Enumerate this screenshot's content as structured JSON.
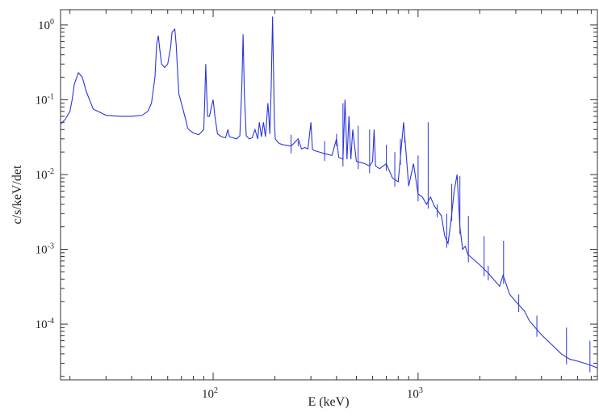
{
  "chart_data": {
    "type": "line",
    "xlabel": "E (keV)",
    "ylabel": "c/s/keV/det",
    "xscale": "log",
    "yscale": "log",
    "xlim": [
      18,
      7500
    ],
    "ylim": [
      1.8e-05,
      1.6
    ],
    "grid": false,
    "legend": "none",
    "line_color": "#2a35d8",
    "x_ticks": [
      {
        "value": 100,
        "base": "10",
        "exp": "2"
      },
      {
        "value": 1000,
        "base": "10",
        "exp": "3"
      }
    ],
    "y_ticks": [
      {
        "value": 1,
        "base": "10",
        "exp": "0"
      },
      {
        "value": 0.1,
        "base": "10",
        "exp": "-1"
      },
      {
        "value": 0.01,
        "base": "10",
        "exp": "-2"
      },
      {
        "value": 0.001,
        "base": "10",
        "exp": "-3"
      },
      {
        "value": 0.0001,
        "base": "10",
        "exp": "-4"
      }
    ],
    "series": [
      {
        "x": [
          18,
          19,
          20,
          20.5,
          21,
          22,
          23,
          24,
          26,
          30,
          35,
          40,
          45,
          48,
          50,
          52,
          53,
          54,
          55,
          56,
          58,
          60,
          62,
          63,
          65,
          66,
          67,
          68,
          70,
          74,
          75,
          76,
          80,
          85,
          90,
          91,
          92,
          93,
          94,
          96,
          98,
          100,
          102,
          105,
          110,
          115,
          118,
          120,
          125,
          130,
          135,
          138,
          140,
          142,
          145,
          150,
          155,
          160,
          165,
          168,
          172,
          176,
          180,
          185,
          187,
          189,
          192,
          195,
          197,
          199,
          201,
          205,
          210,
          220,
          240,
          260,
          270,
          280,
          290,
          300,
          305,
          310,
          330,
          350,
          380,
          400,
          410,
          430,
          440,
          450,
          460,
          470,
          480,
          500,
          550,
          580,
          600,
          610,
          620,
          650,
          700,
          750,
          800,
          850,
          900,
          950,
          1000,
          1050,
          1100,
          1150,
          1200,
          1300,
          1350,
          1400,
          1450,
          1500,
          1550,
          1600,
          1650,
          1700,
          1750,
          1800,
          2000,
          2200,
          2500,
          2600,
          2800,
          3000,
          3300,
          3500,
          4000,
          4500,
          5000,
          5500,
          6000,
          6500,
          7000,
          7500
        ],
        "y": [
          0.047,
          0.055,
          0.07,
          0.1,
          0.16,
          0.23,
          0.2,
          0.13,
          0.075,
          0.062,
          0.06,
          0.06,
          0.062,
          0.07,
          0.09,
          0.2,
          0.55,
          0.72,
          0.45,
          0.3,
          0.27,
          0.3,
          0.5,
          0.8,
          0.88,
          0.55,
          0.25,
          0.12,
          0.09,
          0.05,
          0.042,
          0.04,
          0.036,
          0.034,
          0.04,
          0.1,
          0.3,
          0.12,
          0.06,
          0.06,
          0.08,
          0.1,
          0.06,
          0.035,
          0.032,
          0.031,
          0.04,
          0.032,
          0.031,
          0.03,
          0.033,
          0.15,
          0.75,
          0.12,
          0.033,
          0.03,
          0.031,
          0.04,
          0.03,
          0.05,
          0.032,
          0.05,
          0.032,
          0.09,
          0.06,
          0.035,
          0.15,
          1.3,
          0.25,
          0.05,
          0.03,
          0.028,
          0.026,
          0.025,
          0.024,
          0.03,
          0.022,
          0.023,
          0.022,
          0.05,
          0.022,
          0.021,
          0.02,
          0.019,
          0.018,
          0.03,
          0.017,
          0.016,
          0.1,
          0.016,
          0.06,
          0.016,
          0.04,
          0.015,
          0.014,
          0.013,
          0.015,
          0.04,
          0.013,
          0.012,
          0.014,
          0.009,
          0.008,
          0.05,
          0.007,
          0.014,
          0.0055,
          0.005,
          0.004,
          0.005,
          0.0038,
          0.0028,
          0.0015,
          0.0012,
          0.0025,
          0.006,
          0.01,
          0.002,
          0.001,
          0.0011,
          0.00085,
          0.0008,
          0.00062,
          0.00048,
          0.00032,
          0.00045,
          0.00025,
          0.0002,
          0.00015,
          0.00011,
          7.2e-05,
          5.3e-05,
          4e-05,
          3.4e-05,
          3.2e-05,
          3e-05,
          2.8e-05,
          2.6e-05
        ]
      }
    ],
    "spikes": [
      {
        "x": 240,
        "y": 0.034
      },
      {
        "x": 260,
        "y": 0.028
      },
      {
        "x": 300,
        "y": 0.045
      },
      {
        "x": 350,
        "y": 0.028
      },
      {
        "x": 400,
        "y": 0.035
      },
      {
        "x": 430,
        "y": 0.09
      },
      {
        "x": 460,
        "y": 0.06
      },
      {
        "x": 510,
        "y": 0.045
      },
      {
        "x": 580,
        "y": 0.04
      },
      {
        "x": 700,
        "y": 0.025
      },
      {
        "x": 770,
        "y": 0.02
      },
      {
        "x": 820,
        "y": 0.03
      },
      {
        "x": 860,
        "y": 0.032
      },
      {
        "x": 1000,
        "y": 0.018
      },
      {
        "x": 1120,
        "y": 0.05
      },
      {
        "x": 1240,
        "y": 0.004
      },
      {
        "x": 1380,
        "y": 0.003
      },
      {
        "x": 1460,
        "y": 0.0075
      },
      {
        "x": 1600,
        "y": 0.0095
      },
      {
        "x": 1760,
        "y": 0.0028
      },
      {
        "x": 2100,
        "y": 0.0015
      },
      {
        "x": 2200,
        "y": 0.0006
      },
      {
        "x": 2614,
        "y": 0.0013
      },
      {
        "x": 3100,
        "y": 0.00025
      },
      {
        "x": 3800,
        "y": 0.00013
      },
      {
        "x": 5300,
        "y": 9e-05
      },
      {
        "x": 6900,
        "y": 6e-05
      }
    ]
  }
}
